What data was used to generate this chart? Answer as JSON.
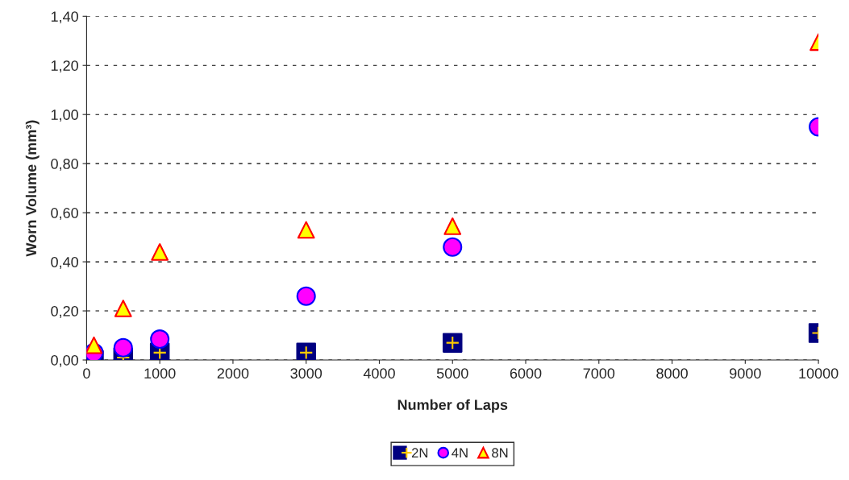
{
  "chart_data": {
    "type": "scatter",
    "xlabel": "Number of Laps",
    "ylabel": "Worn Volume (mm³)",
    "x": [
      100,
      500,
      1000,
      3000,
      5000,
      10000
    ],
    "series": [
      {
        "name": "2N",
        "color": "#000080",
        "marker": "square",
        "values": [
          0.0,
          0.01,
          0.03,
          0.03,
          0.07,
          0.11
        ]
      },
      {
        "name": "4N",
        "color": "#ff00ff",
        "marker": "circle",
        "values": [
          0.03,
          0.05,
          0.085,
          0.26,
          0.46,
          0.95
        ]
      },
      {
        "name": "8N",
        "color": "#ffff00",
        "marker": "triangle",
        "values": [
          0.06,
          0.21,
          0.44,
          0.53,
          0.545,
          1.295
        ]
      }
    ],
    "xlim": [
      0,
      10000
    ],
    "xticks": [
      0,
      1000,
      2000,
      3000,
      4000,
      5000,
      6000,
      7000,
      8000,
      9000,
      10000
    ],
    "ylim": [
      0,
      1.4
    ],
    "yticks": [
      {
        "value": 0,
        "label": "0,00"
      },
      {
        "value": 0.2,
        "label": "0,20"
      },
      {
        "value": 0.4,
        "label": "0,40"
      },
      {
        "value": 0.6,
        "label": "0,60"
      },
      {
        "value": 0.8,
        "label": "0,80"
      },
      {
        "value": 1.0,
        "label": "1,00"
      },
      {
        "value": 1.2,
        "label": "1,20"
      },
      {
        "value": 1.4,
        "label": "1,40"
      }
    ],
    "grid": "y",
    "legend": "bottom"
  }
}
